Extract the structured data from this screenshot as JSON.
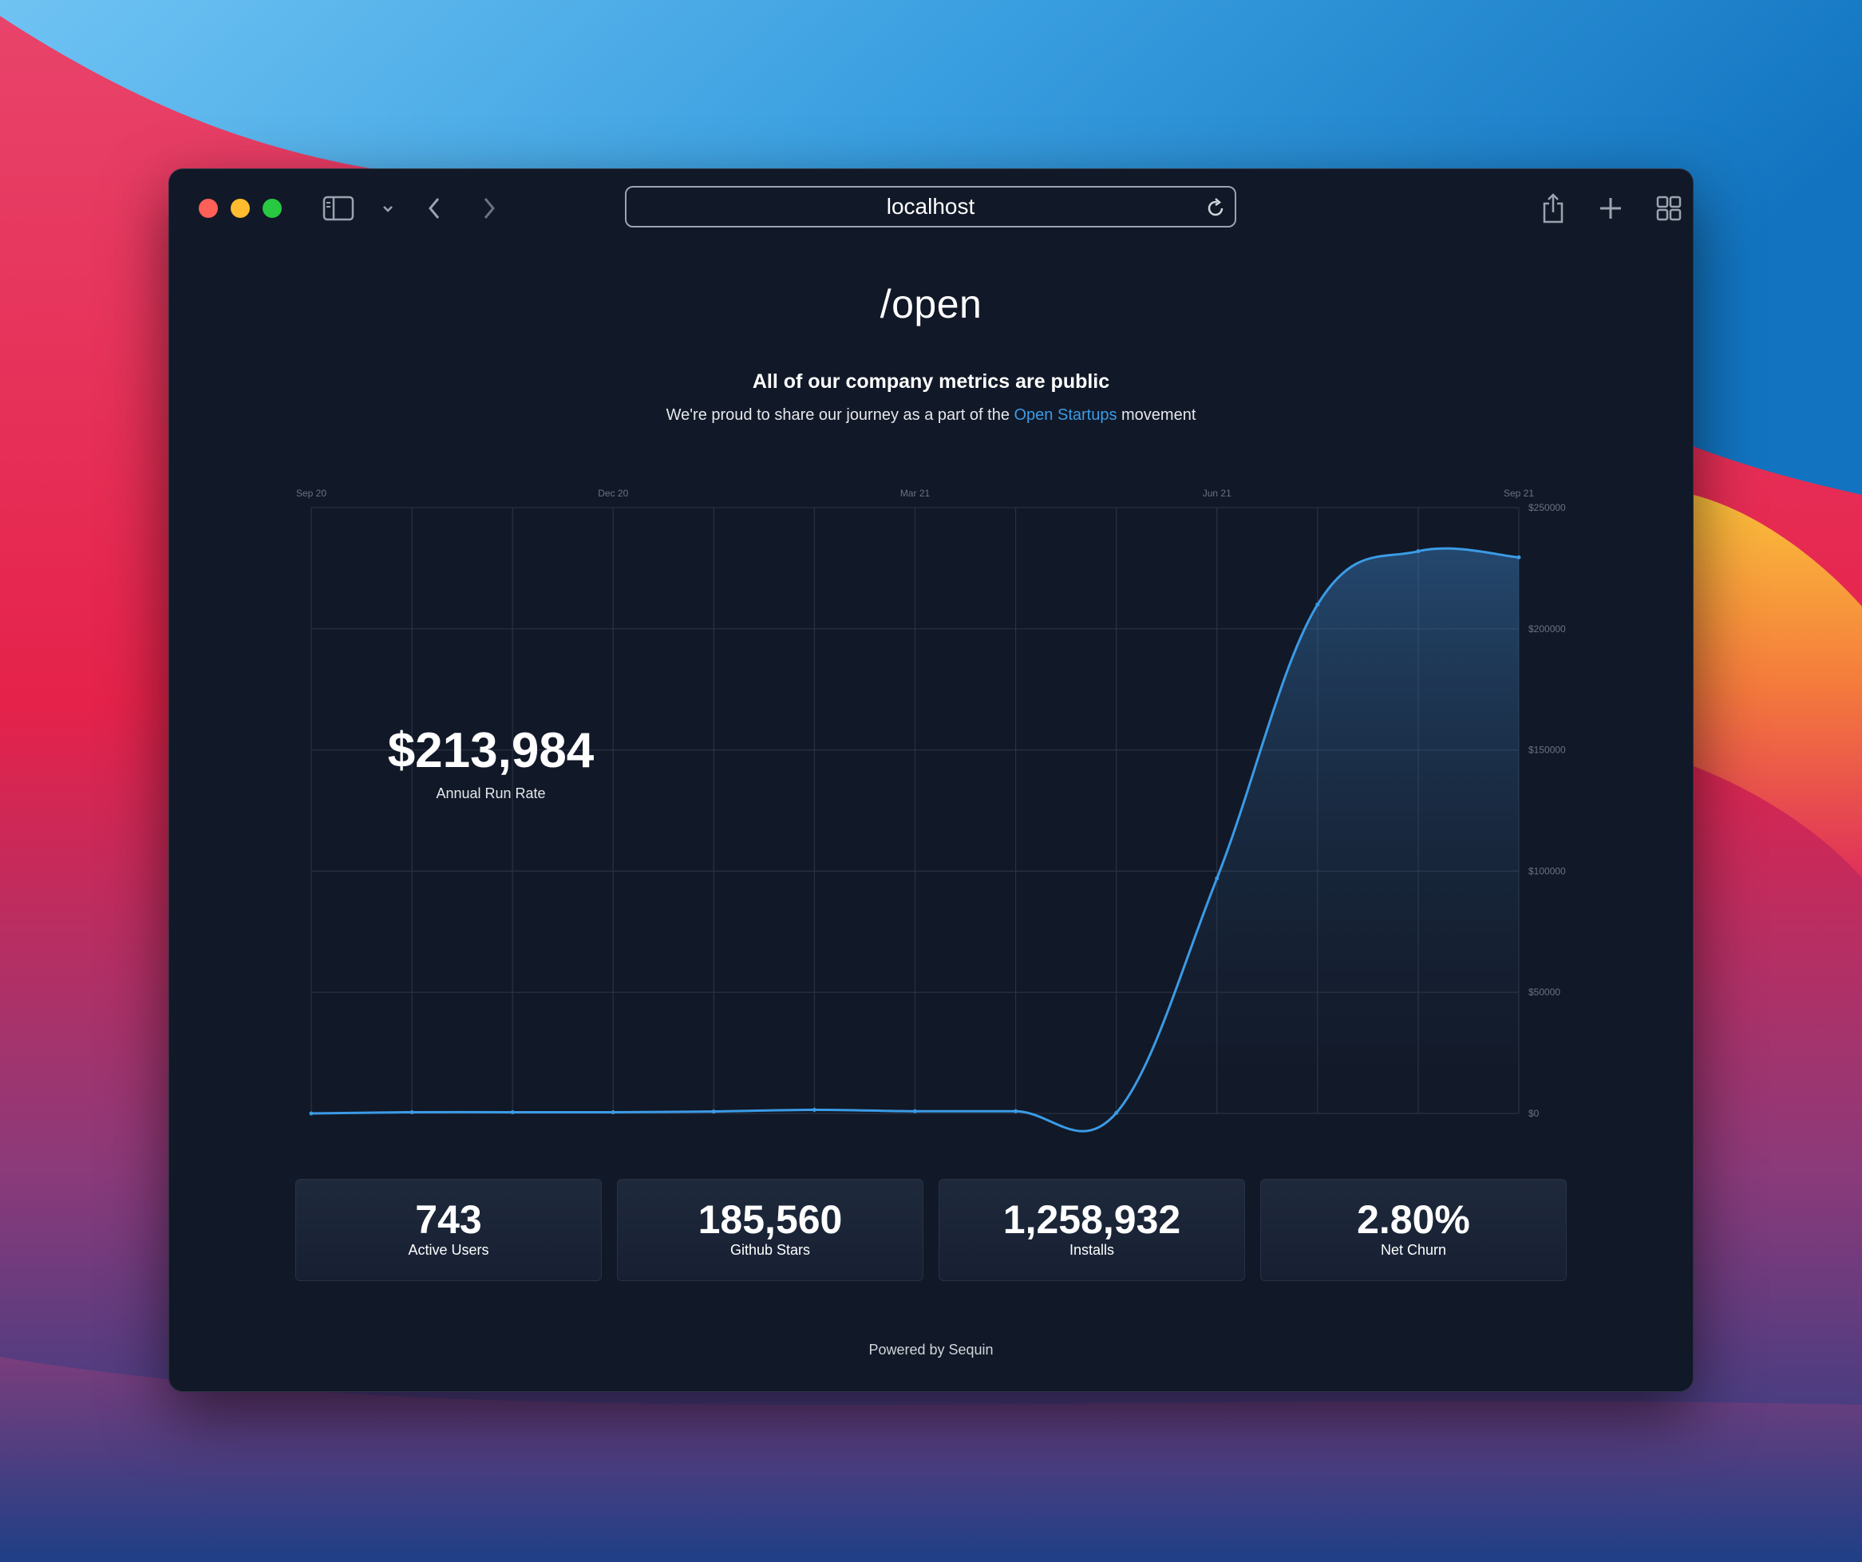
{
  "browser": {
    "address": "localhost"
  },
  "page": {
    "brand": "/open",
    "heading": "All of our company metrics are public",
    "subheading_prefix": "We're proud to share our journey as a part of the ",
    "subheading_link": "Open Startups",
    "subheading_suffix": " movement",
    "headline_metric": {
      "value": "$213,984",
      "label": "Annual Run Rate"
    },
    "stats": [
      {
        "value": "743",
        "label": "Active Users"
      },
      {
        "value": "185,560",
        "label": "Github Stars"
      },
      {
        "value": "1,258,932",
        "label": "Installs"
      },
      {
        "value": "2.80%",
        "label": "Net Churn"
      }
    ],
    "footer": "Powered by Sequin"
  },
  "colors": {
    "background": "#111827",
    "line": "#3b9be6",
    "link": "#3b9be6",
    "grid": "#2a3342"
  },
  "chart_data": {
    "type": "area",
    "x_tick_labels": [
      "Sep 20",
      "Dec 20",
      "Mar 21",
      "Jun 21",
      "Sep 21"
    ],
    "y_tick_labels": [
      "$250000",
      "$200000",
      "$150000",
      "$100000",
      "$50000",
      "$0"
    ],
    "ylim": [
      0,
      250000
    ],
    "y_axis_position": "right",
    "x_axis_position": "top",
    "grid": true,
    "x": [
      "Sep 20",
      "Oct 20",
      "Nov 20",
      "Dec 20",
      "Jan 21",
      "Feb 21",
      "Mar 21",
      "Apr 21",
      "May 21",
      "Jun 21",
      "Jul 21",
      "Aug 21",
      "Sep 21"
    ],
    "values": [
      0,
      500,
      500,
      500,
      800,
      1500,
      900,
      900,
      200,
      97000,
      210000,
      232000,
      229500
    ]
  }
}
